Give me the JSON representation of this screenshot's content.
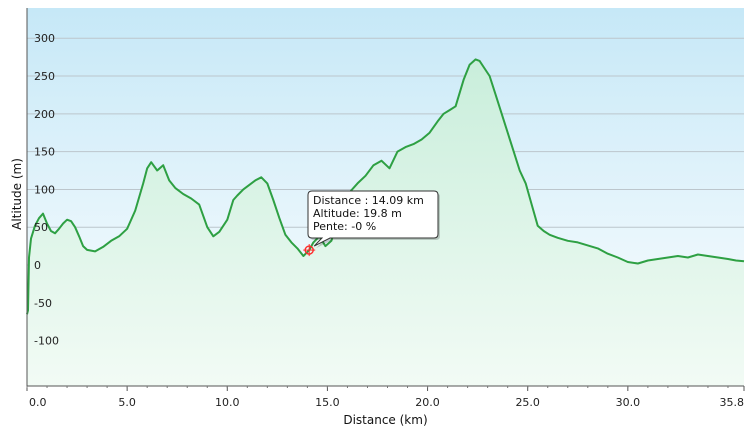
{
  "chart_data": {
    "type": "area",
    "xlabel": "Distance  (km)",
    "ylabel": "Altitude (m)",
    "xlim": [
      0,
      35.8
    ],
    "ylim": [
      -160,
      340
    ],
    "x_ticks": [
      0.0,
      5.0,
      10.0,
      15.0,
      20.0,
      25.0,
      30.0,
      35.8
    ],
    "x_tick_labels": [
      "0.0",
      "5.0",
      "10.0",
      "15.0",
      "20.0",
      "25.0",
      "30.0",
      "35.8"
    ],
    "y_ticks": [
      -100,
      -50,
      0,
      50,
      100,
      150,
      200,
      250,
      300
    ],
    "y_tick_labels": [
      "-100",
      "-50",
      "0",
      "50",
      "100",
      "150",
      "200",
      "250",
      "300"
    ],
    "grid": true,
    "colors": {
      "line": "#2ea043",
      "fill_top": "#c9eedb",
      "fill_bottom": "#f2fbf5",
      "bg_top": "#c6e8f7",
      "bg_bottom": "#ffffff",
      "marker": "#ff2a2a"
    },
    "series": [
      {
        "x": [
          0,
          0.05,
          0.1,
          0.2,
          0.4,
          0.6,
          0.8,
          1.0,
          1.2,
          1.4,
          1.6,
          1.8,
          2.0,
          2.2,
          2.4,
          2.6,
          2.8,
          3.0,
          3.4,
          3.8,
          4.2,
          4.6,
          5.0,
          5.4,
          5.8,
          6.0,
          6.2,
          6.5,
          6.8,
          7.1,
          7.4,
          7.8,
          8.2,
          8.6,
          9.0,
          9.3,
          9.6,
          10.0,
          10.3,
          10.5,
          10.8,
          11.1,
          11.4,
          11.7,
          12.0,
          12.3,
          12.6,
          12.9,
          13.2,
          13.5,
          13.8,
          14.09,
          14.3,
          14.6,
          14.9,
          15.2,
          15.5,
          15.8,
          16.1,
          16.5,
          16.9,
          17.3,
          17.7,
          18.1,
          18.5,
          18.9,
          19.3,
          19.7,
          20.1,
          20.5,
          20.8,
          21.1,
          21.4,
          21.8,
          22.1,
          22.4,
          22.6,
          22.8,
          23.1,
          23.4,
          23.7,
          24.0,
          24.3,
          24.6,
          24.9,
          25.2,
          25.5,
          25.8,
          26.1,
          26.5,
          27.0,
          27.5,
          28.0,
          28.5,
          29.0,
          29.5,
          30.0,
          30.5,
          31.0,
          31.5,
          32.0,
          32.5,
          33.0,
          33.5,
          34.0,
          34.5,
          35.0,
          35.4,
          35.8
        ],
        "y": [
          -65,
          -60,
          10,
          35,
          52,
          62,
          68,
          55,
          45,
          42,
          48,
          55,
          60,
          58,
          50,
          38,
          25,
          20,
          18,
          24,
          32,
          38,
          48,
          72,
          108,
          128,
          136,
          125,
          132,
          112,
          102,
          94,
          88,
          80,
          50,
          38,
          44,
          60,
          86,
          92,
          100,
          106,
          112,
          116,
          108,
          86,
          62,
          40,
          30,
          22,
          12,
          19.8,
          30,
          38,
          25,
          32,
          60,
          78,
          96,
          108,
          118,
          132,
          138,
          128,
          150,
          156,
          160,
          166,
          175,
          190,
          200,
          205,
          210,
          245,
          265,
          272,
          270,
          262,
          250,
          225,
          200,
          175,
          150,
          125,
          108,
          80,
          52,
          45,
          40,
          36,
          32,
          30,
          26,
          22,
          15,
          10,
          4,
          2,
          6,
          8,
          10,
          12,
          10,
          14,
          12,
          10,
          8,
          6,
          5
        ]
      }
    ],
    "tooltip": {
      "x": 14.09,
      "y": 19.8,
      "lines": [
        "Distance : 14.09 km",
        "Altitude: 19.8 m",
        "Pente: -0 %"
      ]
    }
  }
}
